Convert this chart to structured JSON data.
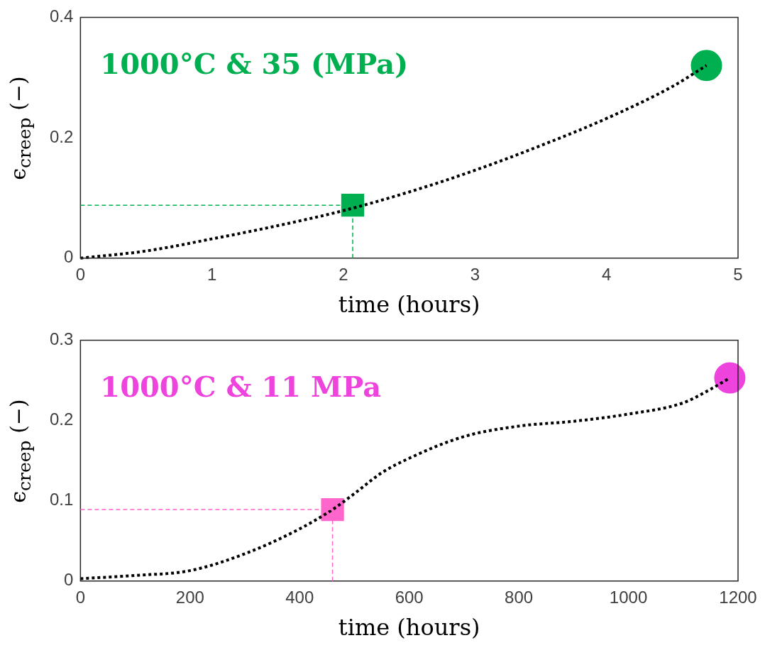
{
  "chart_data": [
    {
      "type": "line",
      "xlabel": "time (hours)",
      "ylabel": "ϵ$_{creep}$  (−)",
      "annotations": [
        "1000°C & 35 (MPa)"
      ],
      "xlim": [
        0,
        5
      ],
      "xticks": [
        0,
        1,
        2,
        3,
        4,
        5
      ],
      "ylim": [
        0,
        0.4
      ],
      "yticks": [
        0,
        0.2,
        0.4
      ],
      "grid": false,
      "legend": false,
      "series": [
        {
          "type": "line",
          "color": "#000000",
          "line_style": "dotted",
          "marker": "none",
          "x": [
            0,
            0.5,
            1,
            1.5,
            2,
            2.5,
            3,
            3.5,
            4,
            4.5,
            4.76
          ],
          "values": [
            0,
            0.012,
            0.032,
            0.054,
            0.079,
            0.11,
            0.146,
            0.187,
            0.232,
            0.285,
            0.32
          ]
        },
        {
          "type": "scatter",
          "color": "#00b050",
          "marker": "square",
          "x": [
            2.07
          ],
          "values": [
            0.088
          ]
        },
        {
          "type": "scatter",
          "color": "#00b050",
          "marker": "circle",
          "x": [
            4.76
          ],
          "values": [
            0.32
          ]
        }
      ],
      "ref_lines": [
        {
          "axis": "x",
          "value": 2.07,
          "color": "#00b050",
          "line_style": "dashed"
        },
        {
          "axis": "y",
          "value": 0.088,
          "color": "#00b050",
          "line_style": "dashed"
        }
      ]
    },
    {
      "type": "line",
      "xlabel": "time (hours)",
      "ylabel": "ϵ$_{creep}$  (−)",
      "annotations": [
        "1000°C & 11 MPa"
      ],
      "xlim": [
        0,
        1200
      ],
      "xticks": [
        0,
        200,
        400,
        600,
        800,
        1000,
        1200
      ],
      "ylim": [
        0,
        0.3
      ],
      "yticks": [
        0,
        0.1,
        0.2,
        0.3
      ],
      "grid": false,
      "legend": false,
      "series": [
        {
          "type": "line",
          "color": "#000000",
          "line_style": "dotted",
          "marker": "none",
          "x": [
            0,
            100,
            200,
            300,
            400,
            460,
            500,
            550,
            600,
            700,
            800,
            900,
            1000,
            1100,
            1150,
            1185
          ],
          "values": [
            0.003,
            0.007,
            0.013,
            0.034,
            0.065,
            0.089,
            0.109,
            0.135,
            0.153,
            0.18,
            0.193,
            0.199,
            0.208,
            0.222,
            0.239,
            0.253
          ]
        },
        {
          "type": "scatter",
          "color": "#ff66cc",
          "marker": "square",
          "x": [
            460
          ],
          "values": [
            0.089
          ]
        },
        {
          "type": "scatter",
          "color": "#ee44dd",
          "marker": "circle",
          "x": [
            1185
          ],
          "values": [
            0.253
          ]
        }
      ],
      "ref_lines": [
        {
          "axis": "x",
          "value": 460,
          "color": "#ff66cc",
          "line_style": "dashed"
        },
        {
          "axis": "y",
          "value": 0.089,
          "color": "#ff66cc",
          "line_style": "dashed"
        }
      ]
    }
  ]
}
